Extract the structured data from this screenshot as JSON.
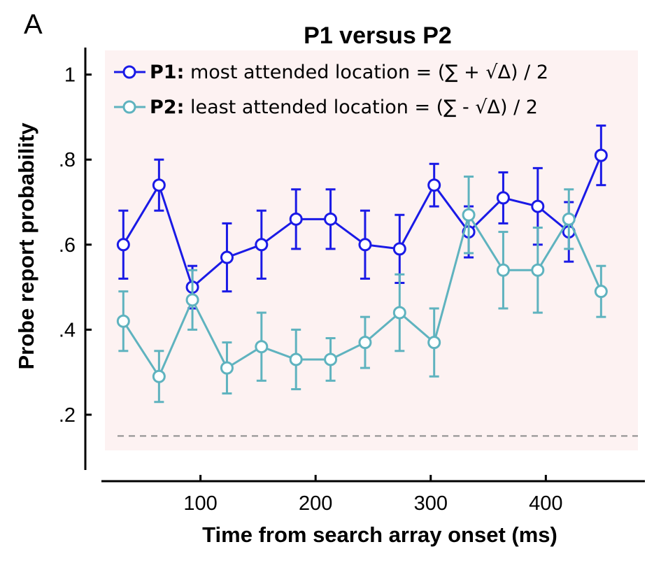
{
  "panel_label": "A",
  "chart_data": {
    "type": "line",
    "title": "P1 versus P2",
    "xlabel": "Time from search array onset (ms)",
    "ylabel": "Probe report probability",
    "xlim": [
      17,
      480
    ],
    "ylim": [
      0.07,
      1.08
    ],
    "xticks": [
      100,
      200,
      300,
      400
    ],
    "xtick_labels": [
      "100",
      "200",
      "300",
      "400"
    ],
    "yticks": [
      0.2,
      0.4,
      0.6,
      0.8,
      1.0
    ],
    "ytick_labels": [
      ".2",
      ".4",
      ".6",
      ".8",
      "1"
    ],
    "x": [
      33,
      64,
      93,
      123,
      153,
      183,
      213,
      243,
      273,
      303,
      333,
      363,
      393,
      420,
      448
    ],
    "series": [
      {
        "name": "P1",
        "legend_bold": "P1:",
        "legend_text": "most attended location = (∑ + √Δ) / 2",
        "color": "#1a1ae6",
        "values": [
          0.6,
          0.74,
          0.5,
          0.57,
          0.6,
          0.66,
          0.66,
          0.6,
          0.59,
          0.74,
          0.63,
          0.71,
          0.69,
          0.63,
          0.81
        ],
        "errors": [
          0.08,
          0.06,
          0.05,
          0.08,
          0.08,
          0.07,
          0.07,
          0.08,
          0.08,
          0.05,
          0.06,
          0.06,
          0.09,
          0.07,
          0.07
        ]
      },
      {
        "name": "P2",
        "legend_bold": "P2:",
        "legend_text": "least attended location = (∑ - √Δ) / 2",
        "color": "#5fb3bf",
        "values": [
          0.42,
          0.29,
          0.47,
          0.31,
          0.36,
          0.33,
          0.33,
          0.37,
          0.44,
          0.37,
          0.67,
          0.54,
          0.54,
          0.66,
          0.49
        ],
        "errors": [
          0.07,
          0.06,
          0.07,
          0.06,
          0.08,
          0.07,
          0.05,
          0.06,
          0.09,
          0.08,
          0.09,
          0.09,
          0.1,
          0.07,
          0.06
        ]
      }
    ],
    "reference_line": 0.15,
    "reference_color": "#8c8c8c",
    "shaded_background": "#fdf2f2",
    "grid": false,
    "legend_position": "top-left"
  }
}
